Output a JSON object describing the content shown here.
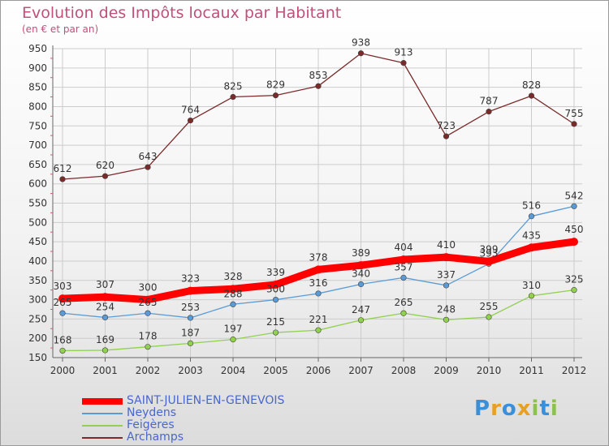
{
  "title": "Evolution des Impôts locaux par Habitant",
  "subtitle": "(en € et par an)",
  "logo": {
    "text": "Proxiti",
    "colors": [
      "#3a8fd8",
      "#e8a020",
      "#8bc34a"
    ]
  },
  "chart_data": {
    "type": "line",
    "x": [
      "2000",
      "2001",
      "2002",
      "2003",
      "2004",
      "2005",
      "2006",
      "2007",
      "2008",
      "2009",
      "2010",
      "2011",
      "2012"
    ],
    "ylim": [
      150,
      950
    ],
    "yticks": [
      150,
      200,
      250,
      300,
      350,
      400,
      450,
      500,
      550,
      600,
      650,
      700,
      750,
      800,
      850,
      900,
      950
    ],
    "grid": true,
    "legend_position": "bottom-left",
    "series": [
      {
        "name": "SAINT-JULIEN-EN-GENEVOIS",
        "color": "#ff0000",
        "values": [
          303,
          307,
          300,
          323,
          328,
          339,
          378,
          389,
          404,
          410,
          399,
          435,
          450
        ]
      },
      {
        "name": "Neydens",
        "color": "#5b9bd5",
        "values": [
          265,
          254,
          265,
          253,
          288,
          300,
          316,
          340,
          357,
          337,
          393,
          516,
          542
        ]
      },
      {
        "name": "Feigères",
        "color": "#92d050",
        "values": [
          168,
          169,
          178,
          187,
          197,
          215,
          221,
          247,
          265,
          248,
          255,
          310,
          325
        ]
      },
      {
        "name": "Archamps",
        "color": "#7b2a2a",
        "values": [
          612,
          620,
          643,
          764,
          825,
          829,
          853,
          938,
          913,
          723,
          787,
          828,
          755
        ]
      }
    ]
  }
}
